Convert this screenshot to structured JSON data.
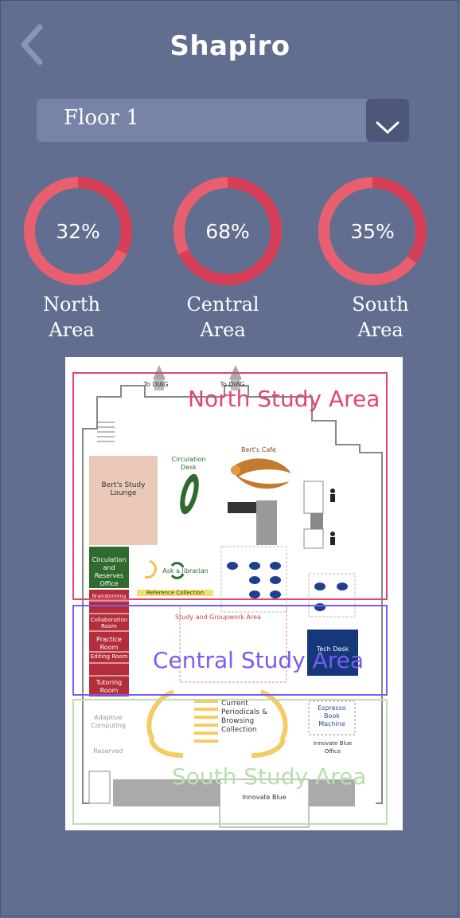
{
  "header": {
    "title": "Shapiro",
    "back_icon": "chevron-left-icon"
  },
  "floor_select": {
    "value": "Floor 1",
    "icon": "chevron-down-icon"
  },
  "areas": [
    {
      "name_line1": "North",
      "name_line2": "Area",
      "percent_label": "32%",
      "occupancy": 0.32
    },
    {
      "name_line1": "Central",
      "name_line2": "Area",
      "percent_label": "68%",
      "occupancy": 0.68
    },
    {
      "name_line1": "South",
      "name_line2": "Area",
      "percent_label": "35%",
      "occupancy": 0.35
    }
  ],
  "colors": {
    "background": "#626e8f",
    "ring_track": "#e8606f",
    "ring_fill": "#d63f57",
    "north_zone": "#e2456e",
    "central_zone": "#7a5cf0",
    "south_zone": "#b9dfae"
  },
  "map": {
    "north_label": "North Study Area",
    "central_label": "Central Study Area",
    "south_label": "South Study Area",
    "to_diag_1": "To DIAG",
    "to_diag_2": "To DIAG",
    "berts_cafe": "Bert's Cafe",
    "circulation_desk": "Circulation Desk",
    "berts_lounge": "Bert's Study Lounge",
    "ask_librarian": "Ask a librarian",
    "reference_collection": "Reference Collection",
    "circulation_office": "Circulation and Reserves Office",
    "room_brainstorming": "Brainstorming",
    "room_collaboration": "Collaboration Room",
    "room_practice": "Practice Room",
    "room_editing": "Editing Room",
    "room_tutoring": "Tutoring Room",
    "study_groupwork": "Study and Groupwork Area",
    "tech_desk": "Tech Desk",
    "periodicals": "Current Periodicals & Browsing Collection",
    "espresso": "Espresso Book Machine",
    "innovate_office": "Innovate Blue Office",
    "innovate_blue": "Innovate Blue",
    "adaptive": "Adaptive Computing",
    "reserved": "Reserved"
  }
}
